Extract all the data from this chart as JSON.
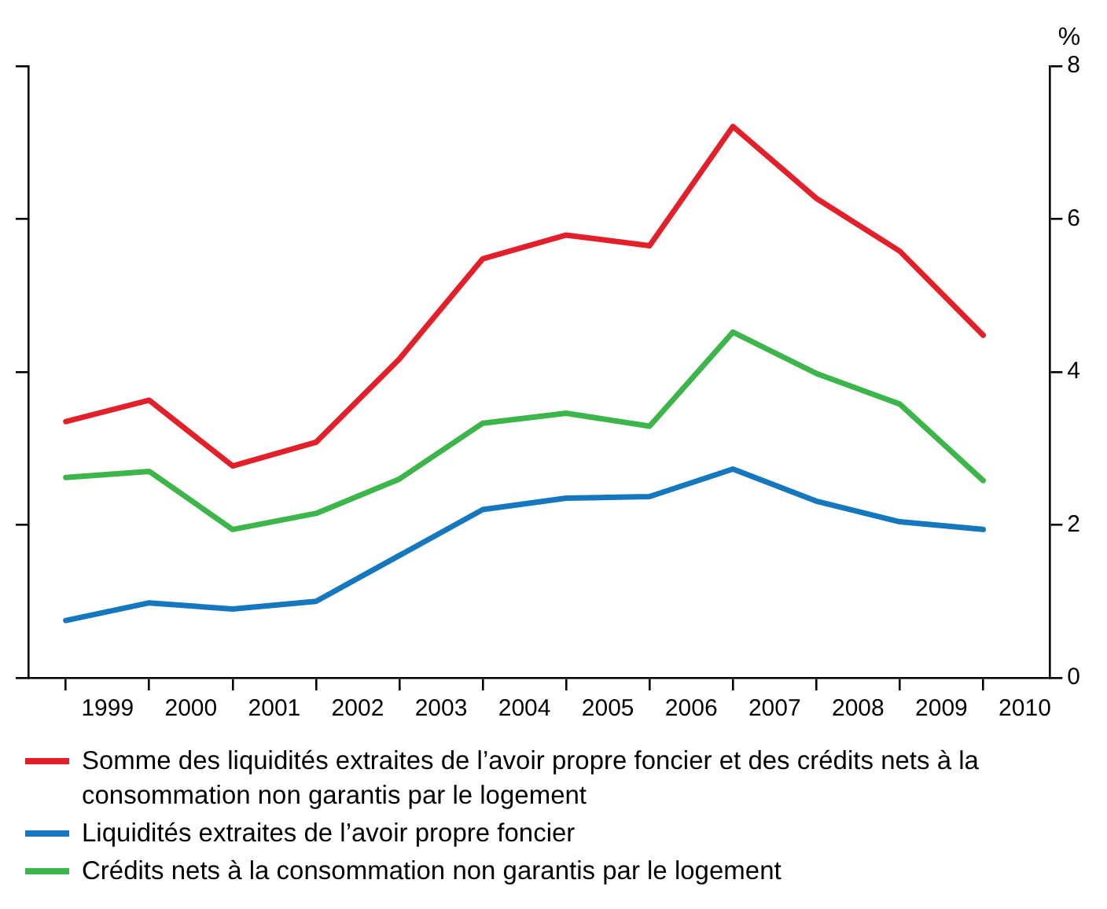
{
  "chart_data": {
    "type": "line",
    "ylabel": "%",
    "x": [
      1998.5,
      1999.5,
      2000.5,
      2001.5,
      2002.5,
      2003.5,
      2004.5,
      2005.5,
      2006.5,
      2007.5,
      2008.5,
      2009.5
    ],
    "xlim": [
      1998.05,
      2010.3
    ],
    "xticks": [
      {
        "value": 1998.5,
        "label": null
      },
      {
        "value": 1999,
        "label": "1999"
      },
      {
        "value": 1999.5,
        "label": null
      },
      {
        "value": 2000,
        "label": "2000"
      },
      {
        "value": 2000.5,
        "label": null
      },
      {
        "value": 2001,
        "label": "2001"
      },
      {
        "value": 2001.5,
        "label": null
      },
      {
        "value": 2002,
        "label": "2002"
      },
      {
        "value": 2002.5,
        "label": null
      },
      {
        "value": 2003,
        "label": "2003"
      },
      {
        "value": 2003.5,
        "label": null
      },
      {
        "value": 2004,
        "label": "2004"
      },
      {
        "value": 2004.5,
        "label": null
      },
      {
        "value": 2005,
        "label": "2005"
      },
      {
        "value": 2005.5,
        "label": null
      },
      {
        "value": 2006,
        "label": "2006"
      },
      {
        "value": 2006.5,
        "label": null
      },
      {
        "value": 2007,
        "label": "2007"
      },
      {
        "value": 2007.5,
        "label": null
      },
      {
        "value": 2008,
        "label": "2008"
      },
      {
        "value": 2008.5,
        "label": null
      },
      {
        "value": 2009,
        "label": "2009"
      },
      {
        "value": 2009.5,
        "label": null
      },
      {
        "value": 2010,
        "label": "2010"
      }
    ],
    "ylim": [
      0,
      8
    ],
    "yticks": [
      0,
      2,
      4,
      6,
      8
    ],
    "grid": false,
    "legend": "bottom",
    "marker": "none",
    "line_style": "solid",
    "series": [
      {
        "name": "Somme des liquidités extraites de l’avoir propre foncier et des crédits nets à la consommation non garantis par le logement",
        "color": "#e3202a",
        "values": [
          3.35,
          3.63,
          2.77,
          3.08,
          4.17,
          5.48,
          5.79,
          5.65,
          7.21,
          6.27,
          5.58,
          4.48
        ]
      },
      {
        "name": "Liquidités extraites de l’avoir propre foncier",
        "color": "#1577bd",
        "values": [
          0.75,
          0.98,
          0.9,
          1.0,
          1.6,
          2.2,
          2.35,
          2.37,
          2.73,
          2.31,
          2.04,
          1.94
        ]
      },
      {
        "name": "Crédits nets à la consommation non garantis par le logement",
        "color": "#3cb54a",
        "values": [
          2.62,
          2.7,
          1.94,
          2.15,
          2.6,
          3.33,
          3.46,
          3.29,
          4.52,
          3.98,
          3.58,
          2.58
        ]
      }
    ]
  }
}
